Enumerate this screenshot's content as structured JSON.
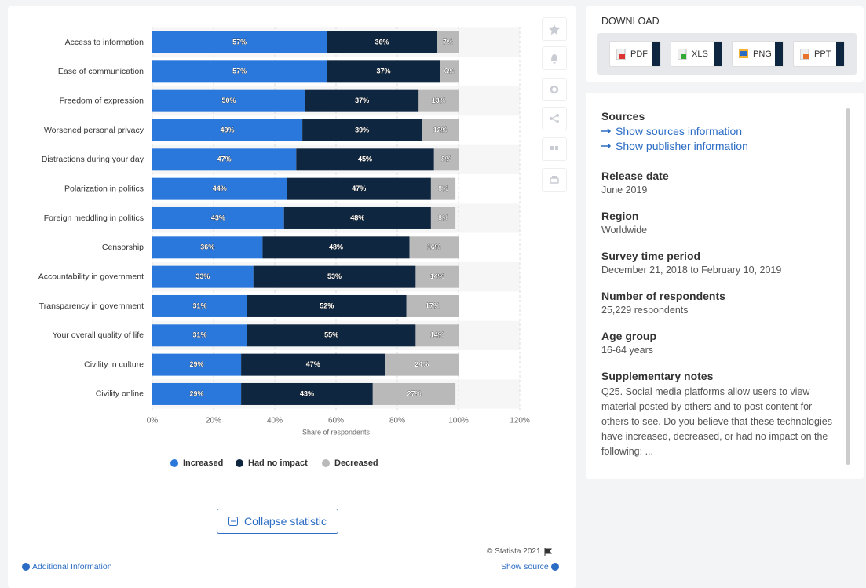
{
  "chart_data": {
    "type": "bar",
    "orientation": "horizontal",
    "stacked": true,
    "categories": [
      "Access to information",
      "Ease of communication",
      "Freedom of expression",
      "Worsened personal privacy",
      "Distractions during your day",
      "Polarization in politics",
      "Foreign meddling in politics",
      "Censorship",
      "Accountability in government",
      "Transparency in government",
      "Your overall quality of life",
      "Civility in culture",
      "Civility online"
    ],
    "series": [
      {
        "name": "Increased",
        "color": "#2b78dc",
        "values": [
          57,
          57,
          50,
          49,
          47,
          44,
          43,
          36,
          33,
          31,
          31,
          29,
          29
        ],
        "value_labels": [
          "57%",
          "57%",
          "50%",
          "49%",
          "47%",
          "44%",
          "43%",
          "36%",
          "33%",
          "31%",
          "31%",
          "29%",
          "29%"
        ]
      },
      {
        "name": "Had no impact",
        "color": "#0f2640",
        "values": [
          36,
          37,
          37,
          39,
          45,
          47,
          48,
          48,
          53,
          52,
          55,
          47,
          43
        ],
        "value_labels": [
          "36%",
          "37%",
          "37%",
          "39%",
          "45%",
          "47%",
          "48%",
          "48%",
          "53%",
          "52%",
          "55%",
          "47%",
          "43%"
        ]
      },
      {
        "name": "Decreased",
        "color": "#b9b9b9",
        "values": [
          7,
          6,
          13,
          12,
          8,
          8,
          8,
          16,
          14,
          17,
          14,
          24,
          27
        ],
        "value_labels": [
          "7%",
          "6%",
          "13%",
          "12%",
          "8%",
          "8%",
          "8%",
          "16%",
          "14%",
          "17%",
          "14%",
          "24%",
          "27%"
        ]
      }
    ],
    "xlabel": "Share of respondents",
    "xlim": [
      0,
      120
    ],
    "xticks": [
      {
        "value": 0,
        "label": "0%"
      },
      {
        "value": 20,
        "label": "20%"
      },
      {
        "value": 40,
        "label": "40%"
      },
      {
        "value": 60,
        "label": "60%"
      },
      {
        "value": 80,
        "label": "80%"
      },
      {
        "value": 100,
        "label": "100%"
      },
      {
        "value": 120,
        "label": "120%"
      }
    ],
    "grid": true,
    "legend": "bottom"
  },
  "download": {
    "title": "DOWNLOAD",
    "buttons": [
      "PDF",
      "XLS",
      "PNG",
      "PPT"
    ]
  },
  "details": {
    "sources": {
      "title": "Sources",
      "links": [
        "Show sources information",
        "Show publisher information"
      ]
    },
    "items": [
      {
        "label": "Release date",
        "value": "June 2019"
      },
      {
        "label": "Region",
        "value": "Worldwide"
      },
      {
        "label": "Survey time period",
        "value": "December 21, 2018 to February 10, 2019"
      },
      {
        "label": "Number of respondents",
        "value": "25,229 respondents"
      },
      {
        "label": "Age group",
        "value": "16-64 years"
      }
    ],
    "notes": {
      "label": "Supplementary notes",
      "text": "Q25. Social media platforms allow users to view material posted by others and to post content for others to see. Do you believe that these technologies have increased, decreased, or had no impact on the following: ..."
    }
  },
  "footer": {
    "collapse": "Collapse statistic",
    "copyright": "© Statista 2021",
    "additional": "Additional Information",
    "source": "Show source"
  }
}
